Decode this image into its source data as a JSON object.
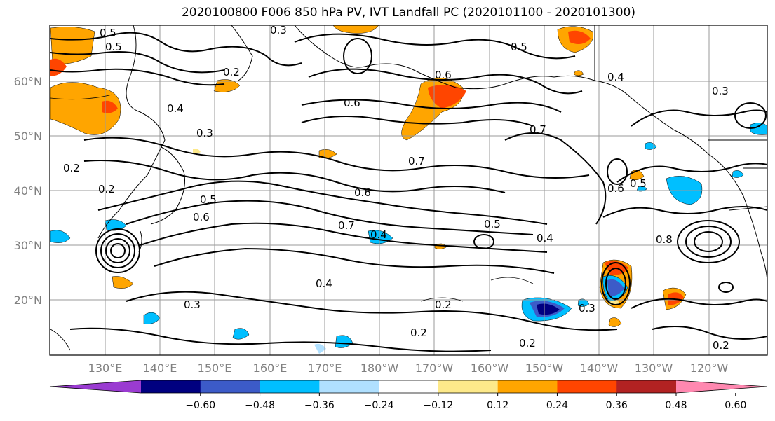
{
  "title": "2020100800 F006 850 hPa PV, IVT Landfall PC (2020101100 - 2020101300)",
  "lat_labels": [
    "60°N",
    "50°N",
    "40°N",
    "30°N",
    "20°N"
  ],
  "lon_labels": [
    "130°E",
    "140°E",
    "150°E",
    "160°E",
    "170°E",
    "180°W",
    "170°W",
    "160°W",
    "150°W",
    "140°W",
    "130°W",
    "120°W"
  ],
  "colorbar": {
    "colors": [
      "#9a3bd1",
      "#000080",
      "#3c5bc8",
      "#00bfff",
      "#b0e0ff",
      "#ffffff",
      "#fde98a",
      "#ffa500",
      "#ff4500",
      "#b22222",
      "#ff88b0"
    ],
    "labels": [
      "−0.60",
      "−0.48",
      "−0.36",
      "−0.24",
      "−0.12",
      "0.12",
      "0.24",
      "0.36",
      "0.48",
      "0.60"
    ]
  },
  "contour_labels": [
    "0.5",
    "0.5",
    "0.6",
    "0.4",
    "0.3",
    "0.2",
    "0.5",
    "0.6",
    "0.7",
    "0.4",
    "0.3",
    "0.2",
    "0.7",
    "0.6",
    "0.7",
    "0.5",
    "0.6",
    "0.5",
    "0.4",
    "0.4",
    "0.3",
    "0.3",
    "0.2",
    "0.2",
    "0.2",
    "0.2",
    "0.4",
    "0.6",
    "0.5",
    "0.3",
    "0.8",
    "0.2"
  ]
}
